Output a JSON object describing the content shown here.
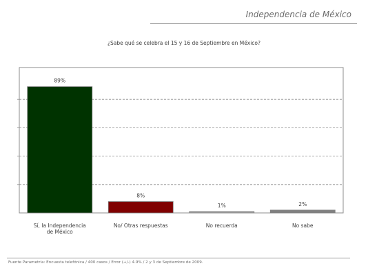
{
  "header": {
    "title": "Independencia de México"
  },
  "footer": {
    "source": "Fuente Parametría: Encuesta telefónica / 400 casos / Error (+/-) 4.9% / 2 y 3 de Septiembre de 2009."
  },
  "chart_data": {
    "type": "bar",
    "title": "¿Sabe qué se celebra el 15  y 16 de Septiembre en México?",
    "categories": [
      "Sí, la Independencia de México",
      "No/ Otras respuestas",
      "No recuerda",
      "No sabe"
    ],
    "category_lines": [
      [
        "Sí, la Independencia",
        "de México"
      ],
      [
        "No/ Otras respuestas"
      ],
      [
        "No recuerda"
      ],
      [
        "No sabe"
      ]
    ],
    "values": [
      89,
      8,
      1,
      2
    ],
    "data_labels": [
      "89%",
      "8%",
      "1%",
      "2%"
    ],
    "colors": [
      "#003300",
      "#800000",
      "#a6a6a6",
      "#808080"
    ],
    "ylim": [
      0,
      100
    ],
    "grid": true,
    "legend": "none"
  }
}
